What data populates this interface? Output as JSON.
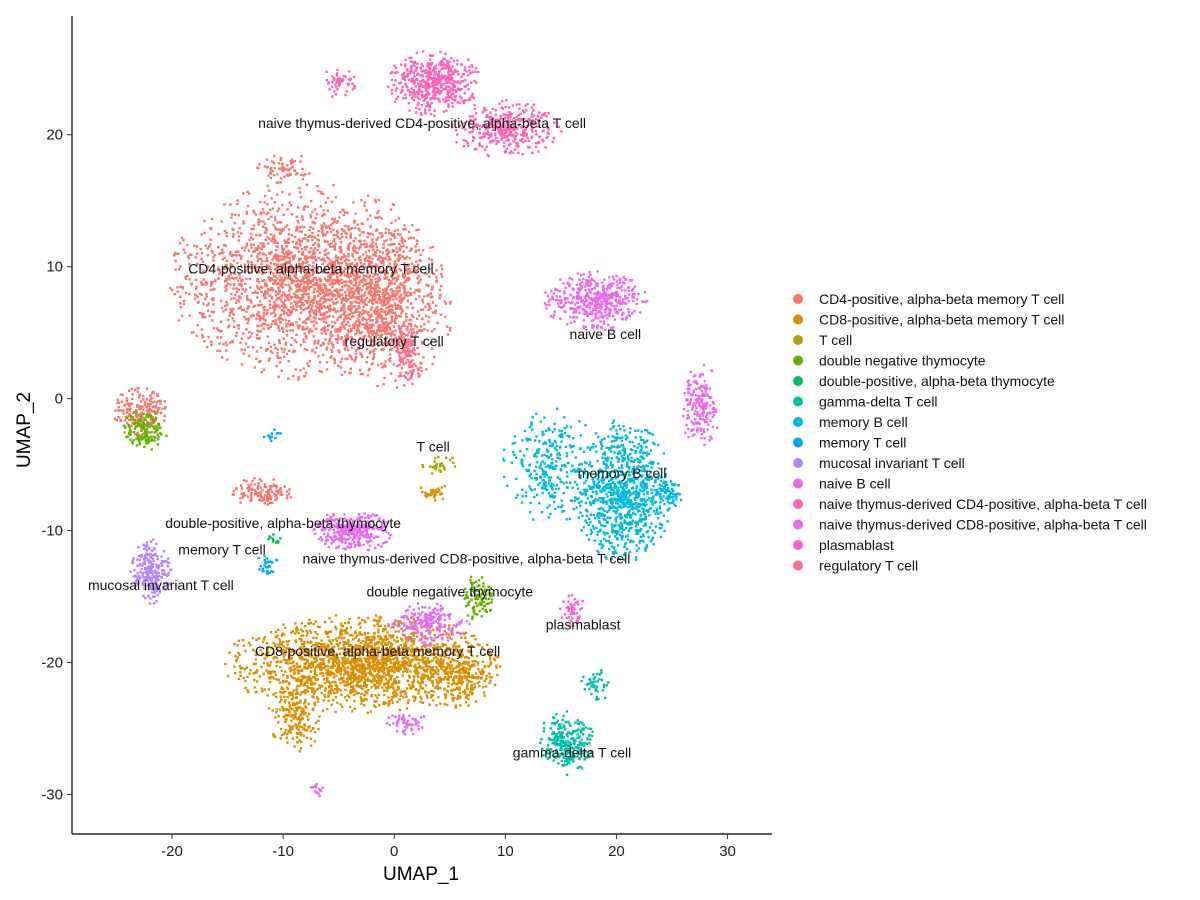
{
  "chart_data": {
    "type": "scatter",
    "title": "",
    "xlabel": "UMAP_1",
    "ylabel": "UMAP_2",
    "xlim": [
      -29,
      34
    ],
    "ylim": [
      -33,
      29
    ],
    "x_ticks": [
      -20,
      -10,
      0,
      10,
      20,
      30
    ],
    "y_ticks": [
      -30,
      -20,
      -10,
      0,
      10,
      20
    ],
    "grid": false,
    "legend_position": "right",
    "series": [
      {
        "name": "CD4-positive, alpha-beta memory T cell",
        "color": "#F8766D",
        "clusters": [
          {
            "cx": -8,
            "cy": 9,
            "rx": 10,
            "ry": 6,
            "n": 2200
          },
          {
            "cx": -1,
            "cy": 7,
            "rx": 5,
            "ry": 5,
            "n": 700
          },
          {
            "cx": -23,
            "cy": -1,
            "rx": 2.2,
            "ry": 1.6,
            "n": 200
          },
          {
            "cx": -12,
            "cy": -7,
            "rx": 2.2,
            "ry": 0.9,
            "n": 120
          },
          {
            "cx": -10,
            "cy": 17.5,
            "rx": 2,
            "ry": 1,
            "n": 70
          }
        ]
      },
      {
        "name": "CD8-positive, alpha-beta memory T cell",
        "color": "#DB8E00",
        "clusters": [
          {
            "cx": -3,
            "cy": -20,
            "rx": 10,
            "ry": 3,
            "n": 1900
          },
          {
            "cx": -9,
            "cy": -24,
            "rx": 2,
            "ry": 2.2,
            "n": 180
          },
          {
            "cx": 6,
            "cy": -21,
            "rx": 3,
            "ry": 2,
            "n": 200
          },
          {
            "cx": 3.5,
            "cy": -7,
            "rx": 1.2,
            "ry": 0.5,
            "n": 35
          }
        ]
      },
      {
        "name": "T cell",
        "color": "#AEA200",
        "clusters": [
          {
            "cx": 4,
            "cy": -5,
            "rx": 1.5,
            "ry": 0.6,
            "n": 30
          }
        ]
      },
      {
        "name": "double negative thymocyte",
        "color": "#64B200",
        "clusters": [
          {
            "cx": 7.5,
            "cy": -15,
            "rx": 1.2,
            "ry": 1.5,
            "n": 100
          },
          {
            "cx": -22.5,
            "cy": -2.3,
            "rx": 1.6,
            "ry": 1.3,
            "n": 140
          }
        ]
      },
      {
        "name": "double-positive, alpha-beta thymocyte",
        "color": "#00BD5C",
        "clusters": [
          {
            "cx": -11,
            "cy": -10.5,
            "rx": 0.6,
            "ry": 0.5,
            "n": 12
          }
        ]
      },
      {
        "name": "gamma-delta T cell",
        "color": "#00C1A7",
        "clusters": [
          {
            "cx": 15.5,
            "cy": -26,
            "rx": 2.2,
            "ry": 2,
            "n": 260
          },
          {
            "cx": 18,
            "cy": -21.5,
            "rx": 1.2,
            "ry": 1.2,
            "n": 40
          }
        ]
      },
      {
        "name": "memory B cell",
        "color": "#00BADE",
        "clusters": [
          {
            "cx": 20.5,
            "cy": -7,
            "rx": 3.5,
            "ry": 4.5,
            "n": 900
          },
          {
            "cx": 14,
            "cy": -5,
            "rx": 3.5,
            "ry": 3.5,
            "n": 300
          },
          {
            "cx": 24.5,
            "cy": -7,
            "rx": 1.2,
            "ry": 1.2,
            "n": 70
          }
        ]
      },
      {
        "name": "memory T cell",
        "color": "#00A6FF",
        "clusters": [
          {
            "cx": -11.5,
            "cy": -12.5,
            "rx": 0.8,
            "ry": 0.8,
            "n": 30
          },
          {
            "cx": -11,
            "cy": -2.5,
            "rx": 0.8,
            "ry": 0.5,
            "n": 12
          }
        ]
      },
      {
        "name": "mucosal invariant T cell",
        "color": "#B385FF",
        "clusters": [
          {
            "cx": -22,
            "cy": -13,
            "rx": 1.5,
            "ry": 2,
            "n": 230
          }
        ]
      },
      {
        "name": "naive B cell",
        "color": "#EF67EB",
        "clusters": [
          {
            "cx": 18,
            "cy": 7.5,
            "rx": 3.8,
            "ry": 1.8,
            "n": 450
          },
          {
            "cx": 27.5,
            "cy": -0.5,
            "rx": 1.5,
            "ry": 2.6,
            "n": 180
          }
        ]
      },
      {
        "name": "naive thymus-derived CD4-positive, alpha-beta T cell",
        "color": "#FF63B6",
        "clusters": [
          {
            "cx": 3.5,
            "cy": 24,
            "rx": 3.5,
            "ry": 2,
            "n": 500
          },
          {
            "cx": 10,
            "cy": 20.5,
            "rx": 4,
            "ry": 1.8,
            "n": 350
          },
          {
            "cx": -5,
            "cy": 24,
            "rx": 1.5,
            "ry": 1,
            "n": 50
          }
        ]
      },
      {
        "name": "naive thymus-derived CD8-positive, alpha-beta T cell",
        "color": "#E76BF3",
        "clusters": [
          {
            "cx": -4,
            "cy": -10,
            "rx": 3,
            "ry": 1.3,
            "n": 320
          },
          {
            "cx": 3,
            "cy": -17,
            "rx": 3,
            "ry": 1.3,
            "n": 200
          },
          {
            "cx": 1,
            "cy": -24.5,
            "rx": 1.5,
            "ry": 0.8,
            "n": 60
          },
          {
            "cx": -7,
            "cy": -29.5,
            "rx": 0.5,
            "ry": 0.5,
            "n": 15
          }
        ]
      },
      {
        "name": "plasmablast",
        "color": "#FD61D1",
        "clusters": [
          {
            "cx": 16,
            "cy": -16,
            "rx": 1,
            "ry": 1,
            "n": 50
          }
        ]
      },
      {
        "name": "regulatory T cell",
        "color": "#FF6C91",
        "clusters": [
          {
            "cx": 1,
            "cy": 3.5,
            "rx": 1.3,
            "ry": 2,
            "n": 120
          }
        ]
      }
    ],
    "annotations": [
      {
        "text": "naive thymus-derived CD4-positive, alpha-beta T cell",
        "x": 2.5,
        "y": 20.5
      },
      {
        "text": "CD4-positive, alpha-beta memory T cell",
        "x": -7.5,
        "y": 9.5
      },
      {
        "text": "regulatory T cell",
        "x": 0,
        "y": 4
      },
      {
        "text": "naive B cell",
        "x": 19,
        "y": 4.5
      },
      {
        "text": "T cell",
        "x": 3.5,
        "y": -4
      },
      {
        "text": "memory B cell",
        "x": 20.5,
        "y": -6
      },
      {
        "text": "double-positive, alpha-beta thymocyte",
        "x": -10,
        "y": -9.8
      },
      {
        "text": "memory T cell",
        "x": -15.5,
        "y": -11.8
      },
      {
        "text": "naive thymus-derived CD8-positive, alpha-beta T cell",
        "x": 6.5,
        "y": -12.5
      },
      {
        "text": "mucosal invariant T cell",
        "x": -21,
        "y": -14.5
      },
      {
        "text": "double negative thymocyte",
        "x": 5,
        "y": -15
      },
      {
        "text": "plasmablast",
        "x": 17,
        "y": -17.5
      },
      {
        "text": "CD8-positive, alpha-beta memory T cell",
        "x": -1.5,
        "y": -19.5
      },
      {
        "text": "gamma-delta T cell",
        "x": 16,
        "y": -27.2
      }
    ]
  }
}
